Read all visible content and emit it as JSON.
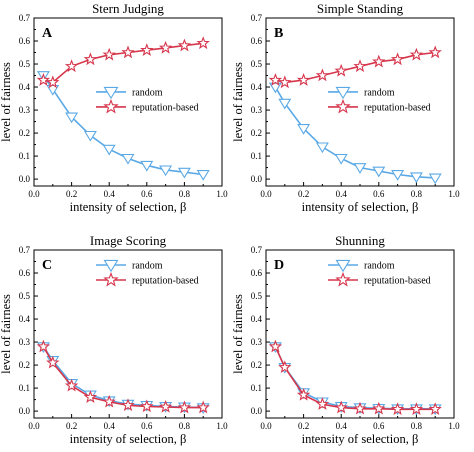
{
  "chart_data": [
    {
      "type": "line",
      "panel_letter": "A",
      "title": "Stern Judging",
      "xlabel": "intensity of selection, β",
      "ylabel": "level of fairness",
      "xlim": [
        0.0,
        1.0
      ],
      "ylim": [
        -0.03,
        0.7
      ],
      "xticks": [
        "0.0",
        "0.2",
        "0.4",
        "0.6",
        "0.8",
        "1.0"
      ],
      "yticks": [
        "0.0",
        "0.1",
        "0.2",
        "0.3",
        "0.4",
        "0.5",
        "0.6",
        "0.7"
      ],
      "legend_position": "middle-right",
      "x": [
        0.05,
        0.1,
        0.2,
        0.3,
        0.4,
        0.5,
        0.6,
        0.7,
        0.8,
        0.9
      ],
      "series": [
        {
          "name": "random",
          "marker": "triangle-down",
          "color": "#5aa9e6",
          "values": [
            0.45,
            0.39,
            0.27,
            0.19,
            0.13,
            0.09,
            0.06,
            0.04,
            0.03,
            0.02
          ]
        },
        {
          "name": "reputation-based",
          "marker": "star",
          "color": "#d6354b",
          "values": [
            0.43,
            0.42,
            0.49,
            0.52,
            0.54,
            0.55,
            0.56,
            0.57,
            0.58,
            0.59
          ]
        }
      ]
    },
    {
      "type": "line",
      "panel_letter": "B",
      "title": "Simple Standing",
      "xlabel": "intensity of selection, β",
      "ylabel": "level of fairness",
      "xlim": [
        0.0,
        1.0
      ],
      "ylim": [
        -0.03,
        0.7
      ],
      "xticks": [
        "0.0",
        "0.2",
        "0.4",
        "0.6",
        "0.8",
        "1.0"
      ],
      "yticks": [
        "0.0",
        "0.1",
        "0.2",
        "0.3",
        "0.4",
        "0.5",
        "0.6",
        "0.7"
      ],
      "legend_position": "middle-right",
      "x": [
        0.05,
        0.1,
        0.2,
        0.3,
        0.4,
        0.5,
        0.6,
        0.7,
        0.8,
        0.9
      ],
      "series": [
        {
          "name": "random",
          "marker": "triangle-down",
          "color": "#5aa9e6",
          "values": [
            0.4,
            0.33,
            0.22,
            0.14,
            0.09,
            0.05,
            0.035,
            0.02,
            0.01,
            0.005
          ]
        },
        {
          "name": "reputation-based",
          "marker": "star",
          "color": "#d6354b",
          "values": [
            0.43,
            0.42,
            0.43,
            0.45,
            0.47,
            0.49,
            0.51,
            0.52,
            0.54,
            0.55
          ]
        }
      ]
    },
    {
      "type": "line",
      "panel_letter": "C",
      "title": "Image Scoring",
      "xlabel": "intensity of selection, β",
      "ylabel": "level of fairness",
      "xlim": [
        0.0,
        1.0
      ],
      "ylim": [
        -0.03,
        0.7
      ],
      "xticks": [
        "0.0",
        "0.2",
        "0.4",
        "0.6",
        "0.8",
        "1.0"
      ],
      "yticks": [
        "0.0",
        "0.1",
        "0.2",
        "0.3",
        "0.4",
        "0.5",
        "0.6",
        "0.7"
      ],
      "legend_position": "top-right",
      "x": [
        0.05,
        0.1,
        0.2,
        0.3,
        0.4,
        0.5,
        0.6,
        0.7,
        0.8,
        0.9
      ],
      "series": [
        {
          "name": "random",
          "marker": "triangle-down",
          "color": "#5aa9e6",
          "values": [
            0.28,
            0.22,
            0.12,
            0.07,
            0.045,
            0.03,
            0.025,
            0.02,
            0.018,
            0.015
          ]
        },
        {
          "name": "reputation-based",
          "marker": "star",
          "color": "#d6354b",
          "values": [
            0.28,
            0.21,
            0.11,
            0.06,
            0.04,
            0.025,
            0.02,
            0.018,
            0.015,
            0.015
          ]
        }
      ]
    },
    {
      "type": "line",
      "panel_letter": "D",
      "title": "Shunning",
      "xlabel": "intensity of selection, β",
      "ylabel": "level of fairness",
      "xlim": [
        0.0,
        1.0
      ],
      "ylim": [
        -0.03,
        0.7
      ],
      "xticks": [
        "0.0",
        "0.2",
        "0.4",
        "0.6",
        "0.8",
        "1.0"
      ],
      "yticks": [
        "0.0",
        "0.1",
        "0.2",
        "0.3",
        "0.4",
        "0.5",
        "0.6",
        "0.7"
      ],
      "legend_position": "top-right",
      "x": [
        0.05,
        0.1,
        0.2,
        0.3,
        0.4,
        0.5,
        0.6,
        0.7,
        0.8,
        0.9
      ],
      "series": [
        {
          "name": "random",
          "marker": "triangle-down",
          "color": "#5aa9e6",
          "values": [
            0.28,
            0.19,
            0.08,
            0.04,
            0.02,
            0.015,
            0.012,
            0.01,
            0.01,
            0.01
          ]
        },
        {
          "name": "reputation-based",
          "marker": "star",
          "color": "#d6354b",
          "values": [
            0.28,
            0.19,
            0.07,
            0.03,
            0.015,
            0.01,
            0.01,
            0.008,
            0.008,
            0.008
          ]
        }
      ]
    }
  ]
}
